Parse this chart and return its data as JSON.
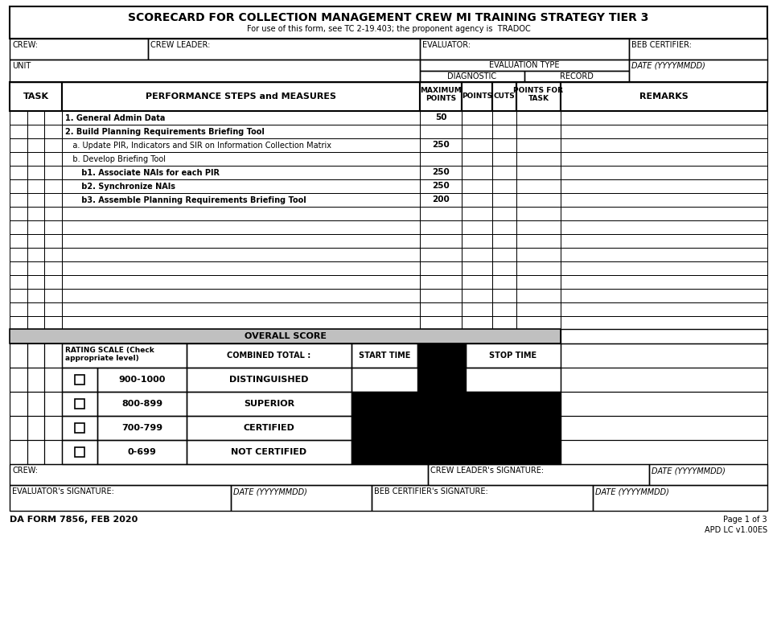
{
  "title": "SCORECARD FOR COLLECTION MANAGEMENT CREW MI TRAINING STRATEGY TIER 3",
  "subtitle": "For use of this form, see TC 2-19.403; the proponent agency is  TRADOC",
  "task_rows": [
    {
      "text": "1. General Admin Data",
      "bold": true,
      "max_points": "50"
    },
    {
      "text": "2. Build Planning Requirements Briefing Tool",
      "bold": true,
      "max_points": ""
    },
    {
      "text": "   a. Update PIR, Indicators and SIR on Information Collection Matrix",
      "bold": false,
      "max_points": "250"
    },
    {
      "text": "   b. Develop Briefing Tool",
      "bold": false,
      "max_points": ""
    },
    {
      "text": "      b1. Associate NAIs for each PIR",
      "bold": true,
      "max_points": "250"
    },
    {
      "text": "      b2. Synchronize NAIs",
      "bold": true,
      "max_points": "250"
    },
    {
      "text": "      b3. Assemble Planning Requirements Briefing Tool",
      "bold": true,
      "max_points": "200"
    },
    {
      "text": "",
      "bold": false,
      "max_points": ""
    },
    {
      "text": "",
      "bold": false,
      "max_points": ""
    },
    {
      "text": "",
      "bold": false,
      "max_points": ""
    },
    {
      "text": "",
      "bold": false,
      "max_points": ""
    },
    {
      "text": "",
      "bold": false,
      "max_points": ""
    },
    {
      "text": "",
      "bold": false,
      "max_points": ""
    },
    {
      "text": "",
      "bold": false,
      "max_points": ""
    },
    {
      "text": "",
      "bold": false,
      "max_points": ""
    }
  ],
  "rating_scales": [
    {
      "range": "900-1000",
      "label": "DISTINGUISHED"
    },
    {
      "range": "800-899",
      "label": "SUPERIOR"
    },
    {
      "range": "700-799",
      "label": "CERTIFIED"
    },
    {
      "range": "0-699",
      "label": "NOT CERTIFIED"
    }
  ],
  "bg_color": "#ffffff",
  "black_fill": "#000000",
  "gray_fill": "#c0c0c0",
  "border_color": "#000000",
  "footer_left": "DA FORM 7856, FEB 2020",
  "footer_right1": "Page 1 of 3",
  "footer_right2": "APD LC v1.00ES"
}
